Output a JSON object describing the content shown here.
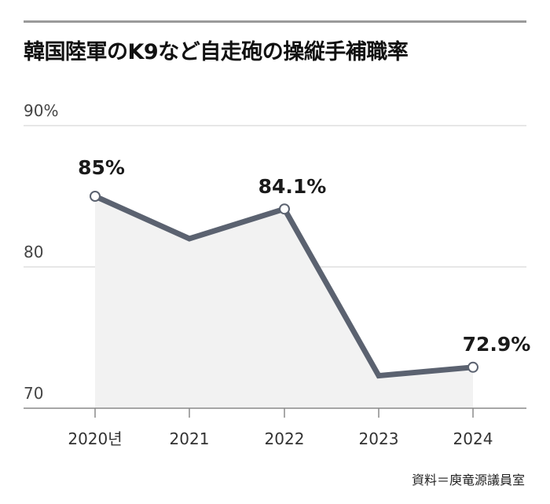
{
  "title": "韓国陸軍のK9など自走砲の操縦手補職率",
  "source": "資料＝庾竜源議員室",
  "chart_data": {
    "type": "line",
    "categories": [
      "2020년",
      "2021",
      "2022",
      "2023",
      "2024"
    ],
    "values": [
      85,
      82,
      84.1,
      72.3,
      72.9
    ],
    "ylim": [
      70,
      90
    ],
    "yticks": [
      {
        "value": 90,
        "label": "90%"
      },
      {
        "value": 80,
        "label": "80"
      },
      {
        "value": 70,
        "label": "70"
      }
    ],
    "data_labels": [
      {
        "index": 0,
        "label": "85%"
      },
      {
        "index": 2,
        "label": "84.1%"
      },
      {
        "index": 4,
        "label": "72.9%"
      }
    ],
    "grid": true,
    "line_color": "#5b6270",
    "fill_color": "#f2f2f2"
  }
}
